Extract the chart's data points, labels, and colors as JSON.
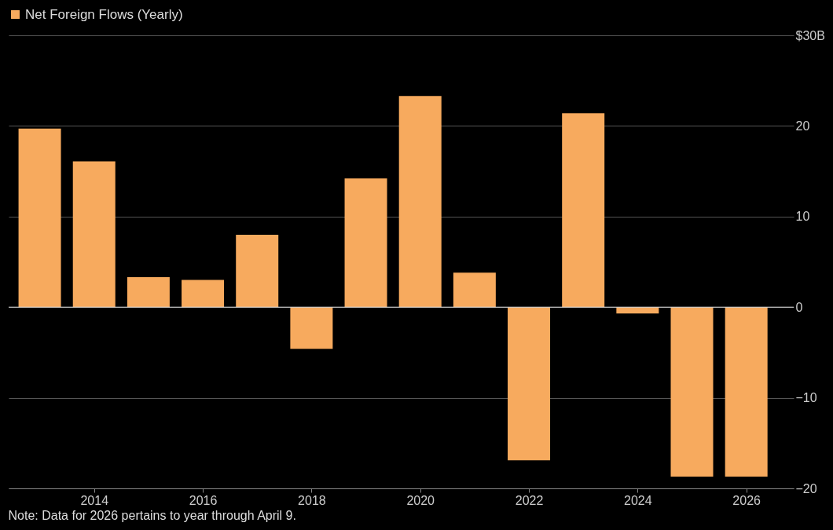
{
  "chart_data": {
    "type": "bar",
    "x": [
      2013,
      2014,
      2015,
      2016,
      2017,
      2018,
      2019,
      2020,
      2021,
      2022,
      2023,
      2024,
      2025,
      2026
    ],
    "series": [
      {
        "name": "Net Foreign Flows (Yearly)",
        "color": "#f7aa5e",
        "values": [
          19.7,
          16.1,
          3.3,
          3.0,
          8.0,
          -4.6,
          14.2,
          23.3,
          3.8,
          -16.9,
          21.4,
          -0.7,
          -18.7,
          -18.7
        ]
      }
    ],
    "xlim": [
      2012.5,
      2026.8
    ],
    "xticks": [
      2014,
      2016,
      2018,
      2020,
      2022,
      2024,
      2026
    ],
    "ylim": [
      -20,
      30
    ],
    "yticks": [
      -20,
      -10,
      0,
      10,
      20,
      {
        "value": 30,
        "label": "$30B"
      }
    ],
    "grid": "y",
    "legend": "top left",
    "annotations": [
      "Note: Data for 2026 pertains to year through April 9."
    ]
  }
}
